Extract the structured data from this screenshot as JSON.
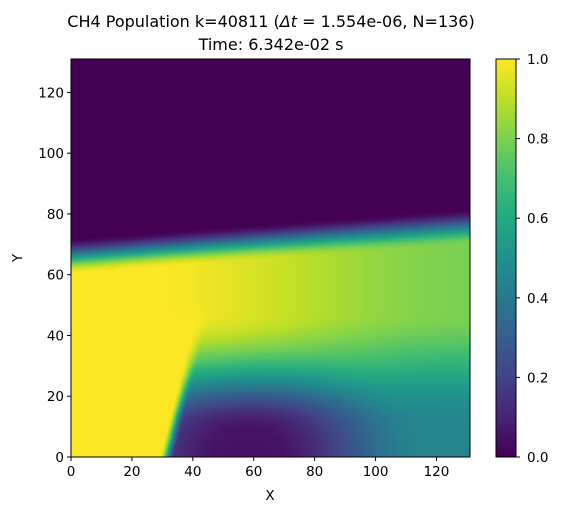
{
  "chart_data": {
    "type": "heatmap",
    "title_line1_prefix": "CH4 Population k=40811 (",
    "title_line1_math": "Δt",
    "title_line1_suffix": " = 1.554e-06, N=136)",
    "title_line2": "Time: 6.342e-02 s",
    "xlabel": "X",
    "ylabel": "Y",
    "xlim": [
      0,
      131
    ],
    "ylim": [
      0,
      131
    ],
    "x_ticks": [
      0,
      20,
      40,
      60,
      80,
      100,
      120
    ],
    "y_ticks": [
      0,
      20,
      40,
      60,
      80,
      100,
      120
    ],
    "colorbar": {
      "range": [
        0.0,
        1.0
      ],
      "ticks": [
        "0.0",
        "0.2",
        "0.4",
        "0.6",
        "0.8",
        "1.0"
      ],
      "colormap": "viridis"
    },
    "field_description": {
      "upper_region_value": 0.0,
      "band_center_y": 55,
      "band_value_left": 1.0,
      "band_value_right": 0.8,
      "transition_y_left": 68,
      "transition_y_right": 78,
      "left_inlet_x_end": 31,
      "left_inlet_value": 1.0,
      "low_spot_center": [
        58,
        0
      ],
      "low_spot_value": 0.05,
      "lower_right_value": 0.45
    }
  }
}
